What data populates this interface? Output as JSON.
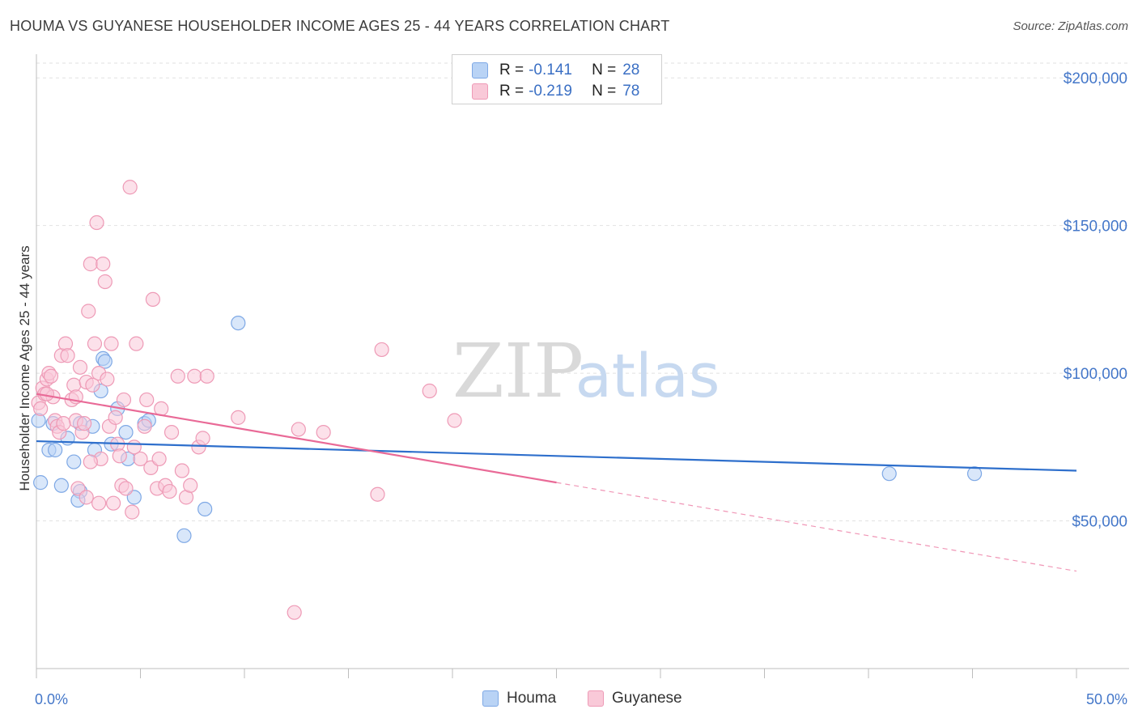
{
  "title": "HOUMA VS GUYANESE HOUSEHOLDER INCOME AGES 25 - 44 YEARS CORRELATION CHART",
  "source": "Source: ZipAtlas.com",
  "watermark": {
    "zip": "ZIP",
    "atlas": "atlas"
  },
  "legend": {
    "rows": [
      {
        "r_label": "R =",
        "r_value": "-0.141",
        "n_label": "N =",
        "n_value": "28",
        "color": "#b9d3f5"
      },
      {
        "r_label": "R =",
        "r_value": "-0.219",
        "n_label": "N =",
        "n_value": "78",
        "color": "#f9c9d8"
      }
    ]
  },
  "bottom_legend": [
    "Houma",
    "Guyanese"
  ],
  "chart_data": {
    "type": "scatter",
    "xlabel": "",
    "ylabel": "Householder Income Ages 25 - 44 years",
    "xlim": [
      0,
      50
    ],
    "ylim": [
      0,
      205000
    ],
    "y_ticks": [
      {
        "value": 50000,
        "label": "$50,000"
      },
      {
        "value": 100000,
        "label": "$100,000"
      },
      {
        "value": 150000,
        "label": "$150,000"
      },
      {
        "value": 200000,
        "label": "$200,000"
      }
    ],
    "x_tick_labels": [
      {
        "value": 0,
        "label": "0.0%"
      },
      {
        "value": 50,
        "label": "50.0%"
      }
    ],
    "grid": true,
    "series": [
      {
        "name": "Houma",
        "color": "#7ea8e5",
        "fill": "#b9d3f5",
        "line_color": "#2e6fcc",
        "trend": {
          "x": [
            0,
            50
          ],
          "y": [
            77000,
            67000
          ],
          "solid_until": 50
        },
        "points": [
          [
            0.1,
            84000
          ],
          [
            0.2,
            63000
          ],
          [
            0.6,
            74000
          ],
          [
            0.8,
            83000
          ],
          [
            0.9,
            74000
          ],
          [
            1.2,
            62000
          ],
          [
            1.5,
            78000
          ],
          [
            1.8,
            70000
          ],
          [
            2.1,
            60000
          ],
          [
            2.1,
            83000
          ],
          [
            2.7,
            82000
          ],
          [
            2.8,
            74000
          ],
          [
            3.1,
            94000
          ],
          [
            3.2,
            105000
          ],
          [
            3.3,
            104000
          ],
          [
            3.6,
            76000
          ],
          [
            3.9,
            88000
          ],
          [
            4.3,
            80000
          ],
          [
            4.4,
            71000
          ],
          [
            4.7,
            58000
          ],
          [
            5.2,
            83000
          ],
          [
            5.4,
            84000
          ],
          [
            7.1,
            45000
          ],
          [
            8.1,
            54000
          ],
          [
            9.7,
            117000
          ],
          [
            41.0,
            66000
          ],
          [
            45.1,
            66000
          ],
          [
            2.0,
            57000
          ]
        ]
      },
      {
        "name": "Guyanese",
        "color": "#ee9ab6",
        "fill": "#f9c9d8",
        "line_color": "#e96a97",
        "trend": {
          "x": [
            0,
            50
          ],
          "y": [
            93000,
            33000
          ],
          "solid_until": 25
        },
        "points": [
          [
            0.1,
            90000
          ],
          [
            0.2,
            88000
          ],
          [
            0.3,
            95000
          ],
          [
            0.4,
            93000
          ],
          [
            0.5,
            98000
          ],
          [
            0.6,
            100000
          ],
          [
            0.7,
            99000
          ],
          [
            0.8,
            92000
          ],
          [
            0.9,
            84000
          ],
          [
            1.0,
            82000
          ],
          [
            1.1,
            80000
          ],
          [
            1.2,
            106000
          ],
          [
            1.4,
            110000
          ],
          [
            1.5,
            106000
          ],
          [
            1.7,
            91000
          ],
          [
            1.8,
            96000
          ],
          [
            1.9,
            84000
          ],
          [
            2.0,
            61000
          ],
          [
            2.1,
            102000
          ],
          [
            2.2,
            80000
          ],
          [
            2.3,
            83000
          ],
          [
            2.4,
            97000
          ],
          [
            2.5,
            121000
          ],
          [
            2.6,
            137000
          ],
          [
            2.7,
            96000
          ],
          [
            2.8,
            110000
          ],
          [
            2.9,
            151000
          ],
          [
            3.0,
            100000
          ],
          [
            3.1,
            71000
          ],
          [
            3.2,
            137000
          ],
          [
            3.3,
            131000
          ],
          [
            3.4,
            98000
          ],
          [
            3.5,
            82000
          ],
          [
            3.6,
            110000
          ],
          [
            3.7,
            56000
          ],
          [
            3.9,
            76000
          ],
          [
            4.0,
            72000
          ],
          [
            4.1,
            62000
          ],
          [
            4.2,
            91000
          ],
          [
            4.3,
            61000
          ],
          [
            4.5,
            163000
          ],
          [
            4.6,
            53000
          ],
          [
            4.8,
            110000
          ],
          [
            5.0,
            71000
          ],
          [
            5.2,
            82000
          ],
          [
            5.3,
            91000
          ],
          [
            5.5,
            68000
          ],
          [
            5.6,
            125000
          ],
          [
            5.8,
            61000
          ],
          [
            6.0,
            88000
          ],
          [
            6.2,
            62000
          ],
          [
            6.5,
            80000
          ],
          [
            6.8,
            99000
          ],
          [
            7.0,
            67000
          ],
          [
            7.2,
            58000
          ],
          [
            7.4,
            62000
          ],
          [
            7.6,
            99000
          ],
          [
            7.8,
            75000
          ],
          [
            8.0,
            78000
          ],
          [
            8.2,
            99000
          ],
          [
            9.7,
            85000
          ],
          [
            12.4,
            19000
          ],
          [
            12.6,
            81000
          ],
          [
            13.8,
            80000
          ],
          [
            16.4,
            59000
          ],
          [
            16.6,
            108000
          ],
          [
            18.9,
            94000
          ],
          [
            20.1,
            84000
          ],
          [
            1.3,
            83000
          ],
          [
            2.6,
            70000
          ],
          [
            3.0,
            56000
          ],
          [
            4.7,
            75000
          ],
          [
            5.9,
            71000
          ],
          [
            0.5,
            93000
          ],
          [
            1.9,
            92000
          ],
          [
            2.4,
            58000
          ],
          [
            3.8,
            85000
          ],
          [
            6.4,
            60000
          ]
        ]
      }
    ]
  }
}
